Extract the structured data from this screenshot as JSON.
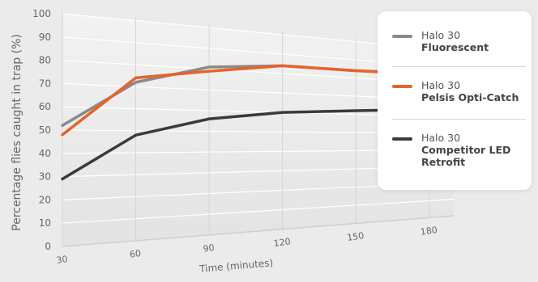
{
  "chart_data": {
    "type": "line",
    "x": [
      30,
      60,
      90,
      120,
      150,
      180
    ],
    "ylim": [
      0,
      100
    ],
    "yticks": [
      0,
      10,
      20,
      30,
      40,
      50,
      60,
      70,
      80,
      90,
      100
    ],
    "xlabel": "Time (minutes)",
    "ylabel": "Percentage flies caught in trap (%)",
    "grid": true,
    "legend_position": "right",
    "series": [
      {
        "name_line1": "Halo 30",
        "name_line2": "Fluorescent",
        "color": "#8a8a8a",
        "values": [
          52,
          72,
          81,
          84,
          84,
          85
        ]
      },
      {
        "name_line1": "Halo 30",
        "name_line2": "Pelsis Opti-Catch",
        "color": "#e8622a",
        "values": [
          48,
          74,
          79,
          84,
          84,
          85
        ]
      },
      {
        "name_line1": "Halo 30",
        "name_line2": "Competitor LED Retrofit",
        "color": "#3a3a3a",
        "values": [
          29,
          48,
          56,
          60,
          62,
          64
        ]
      }
    ]
  }
}
